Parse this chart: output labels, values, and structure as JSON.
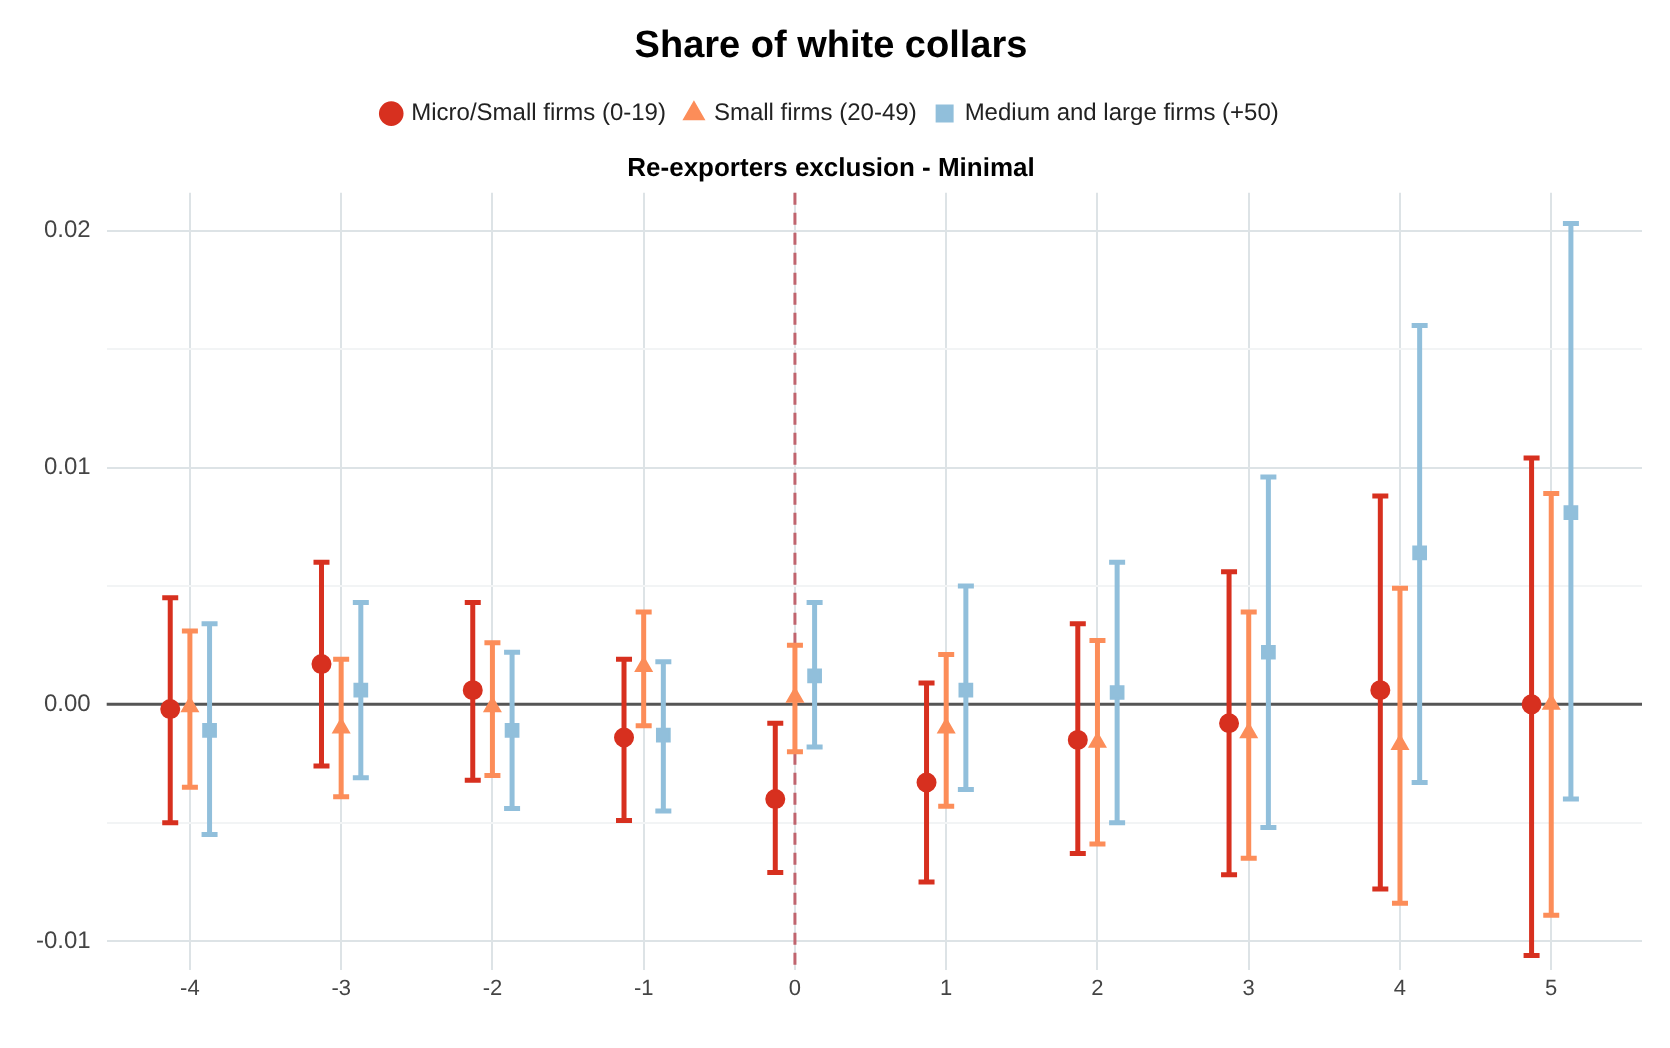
{
  "chart_data": {
    "type": "scatter",
    "title": "Share of white collars",
    "subtitle": "Re-exporters exclusion - Minimal",
    "x": [
      -4,
      -3,
      -2,
      -1,
      0,
      1,
      2,
      3,
      4,
      5
    ],
    "series": [
      {
        "name": "Micro/Small firms (0-19)",
        "color": "#d7301f",
        "marker": "circle",
        "x": [
          -4.13,
          -3.13,
          -2.13,
          -1.13,
          -0.13,
          0.87,
          1.87,
          2.87,
          3.87,
          4.87
        ],
        "values": [
          -0.0002,
          0.0017,
          0.0006,
          -0.0014,
          -0.004,
          -0.0033,
          -0.0015,
          -0.0008,
          0.0006,
          0.0
        ],
        "errors": [
          [
            -0.005,
            0.0045
          ],
          [
            -0.0026,
            0.006
          ],
          [
            -0.0032,
            0.0043
          ],
          [
            -0.0049,
            0.0019
          ],
          [
            -0.0071,
            -0.0008
          ],
          [
            -0.0075,
            0.0009
          ],
          [
            -0.0063,
            0.0034
          ],
          [
            -0.0072,
            0.0056
          ],
          [
            -0.0078,
            0.0088
          ],
          [
            -0.0106,
            0.0104
          ]
        ]
      },
      {
        "name": "Small firms (20-49)",
        "color": "#fc8d59",
        "marker": "triangle",
        "values": [
          -0.0001,
          -0.001,
          -0.0001,
          0.0016,
          0.0003,
          -0.001,
          -0.0016,
          -0.0012,
          -0.0017,
          0.0
        ],
        "errors": [
          [
            -0.0035,
            0.0031
          ],
          [
            -0.0039,
            0.0019
          ],
          [
            -0.003,
            0.0026
          ],
          [
            -0.0009,
            0.0039
          ],
          [
            -0.002,
            0.0025
          ],
          [
            -0.0043,
            0.0021
          ],
          [
            -0.0059,
            0.0027
          ],
          [
            -0.0065,
            0.0039
          ],
          [
            -0.0084,
            0.0049
          ],
          [
            -0.0089,
            0.0089
          ]
        ]
      },
      {
        "name": "Medium and large firms (+50)",
        "color": "#91bfdb",
        "marker": "square",
        "x": [
          -3.87,
          -2.87,
          -1.87,
          -0.87,
          0.13,
          1.13,
          2.13,
          3.13,
          4.13,
          5.13
        ],
        "values": [
          -0.0011,
          0.0006,
          -0.0011,
          -0.0013,
          0.0012,
          0.0006,
          0.0005,
          0.0022,
          0.0064,
          0.0081
        ],
        "errors": [
          [
            -0.0055,
            0.0034
          ],
          [
            -0.0031,
            0.0043
          ],
          [
            -0.0044,
            0.0022
          ],
          [
            -0.0045,
            0.0018
          ],
          [
            -0.0018,
            0.0043
          ],
          [
            -0.0036,
            0.005
          ],
          [
            -0.005,
            0.006
          ],
          [
            -0.0052,
            0.0096
          ],
          [
            -0.0033,
            0.016
          ],
          [
            -0.004,
            0.0203
          ]
        ]
      }
    ],
    "xlim": [
      -4.55,
      5.6
    ],
    "xticks": [
      -4,
      -3,
      -2,
      -1,
      0,
      1,
      2,
      3,
      4,
      5
    ],
    "ylim": [
      -0.0112,
      0.0216
    ],
    "yticks": [
      {
        "value": -0.01,
        "label": "-0.01"
      },
      {
        "value": -0.005,
        "label": null
      },
      {
        "value": 0,
        "label": "0.00"
      },
      {
        "value": 0.005,
        "label": null
      },
      {
        "value": 0.01,
        "label": "0.01"
      },
      {
        "value": 0.015,
        "label": null
      },
      {
        "value": 0.02,
        "label": "0.02"
      }
    ],
    "ref_lines": [
      {
        "axis": "y",
        "value": 0,
        "color": "#555555",
        "line_style": "solid"
      },
      {
        "axis": "x",
        "value": 0,
        "color": "#c0646e",
        "line_style": "dashed"
      }
    ],
    "grid": true,
    "legend": "top"
  }
}
